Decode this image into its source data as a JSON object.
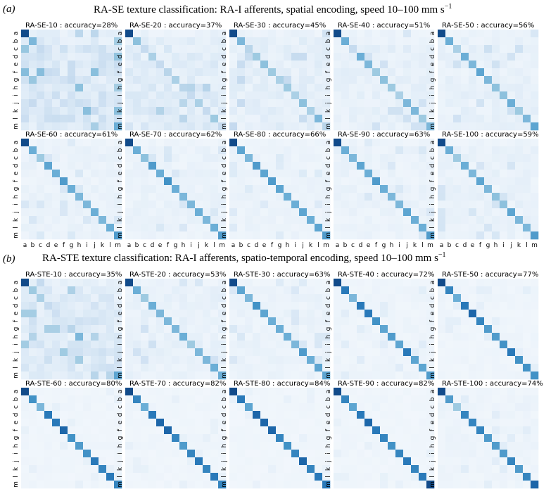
{
  "figure": {
    "panel_a_label": "(a)",
    "panel_a_title": "RA-SE texture classification: RA-I afferents, spatial encoding, speed 10–100 mm s",
    "panel_a_title_sup": "−1",
    "panel_b_label": "(b)",
    "panel_b_title": "RA-STE texture classification: RA-I afferents, spatio-temporal encoding, speed 10–100 mm s",
    "panel_b_title_sup": "−1"
  },
  "colors": {
    "low": "#f2f7fc",
    "high": "#08306b"
  },
  "chart_data": [
    {
      "type": "heatmap",
      "panel": "a",
      "title": "RA-SE-10 : accuracy=28%",
      "accuracy": 28,
      "labels": [
        "a",
        "b",
        "c",
        "d",
        "e",
        "f",
        "g",
        "h",
        "i",
        "j",
        "k",
        "l",
        "m"
      ],
      "diagonal": [
        0.95,
        0.55,
        0.3,
        0.2,
        0.2,
        0.08,
        0.3,
        0.5,
        0.15,
        0.12,
        0.15,
        0.15,
        0.6
      ],
      "off_diagonal_level": 0.09
    },
    {
      "type": "heatmap",
      "panel": "a",
      "title": "RA-SE-20 : accuracy=37%",
      "accuracy": 37,
      "labels": [
        "a",
        "b",
        "c",
        "d",
        "e",
        "f",
        "g",
        "h",
        "i",
        "j",
        "k",
        "l",
        "m"
      ],
      "diagonal": [
        0.95,
        0.5,
        0.3,
        0.4,
        0.3,
        0.35,
        0.4,
        0.35,
        0.3,
        0.4,
        0.3,
        0.45,
        0.3
      ],
      "off_diagonal_level": 0.07
    },
    {
      "type": "heatmap",
      "panel": "a",
      "title": "RA-SE-30 : accuracy=45%",
      "accuracy": 45,
      "labels": [
        "a",
        "b",
        "c",
        "d",
        "e",
        "f",
        "g",
        "h",
        "i",
        "j",
        "k",
        "l",
        "m"
      ],
      "diagonal": [
        0.95,
        0.55,
        0.35,
        0.45,
        0.5,
        0.45,
        0.4,
        0.45,
        0.4,
        0.5,
        0.4,
        0.55,
        0.35
      ],
      "off_diagonal_level": 0.06
    },
    {
      "type": "heatmap",
      "panel": "a",
      "title": "RA-SE-40 : accuracy=51%",
      "accuracy": 51,
      "labels": [
        "a",
        "b",
        "c",
        "d",
        "e",
        "f",
        "g",
        "h",
        "i",
        "j",
        "k",
        "l",
        "m"
      ],
      "diagonal": [
        0.95,
        0.6,
        0.3,
        0.6,
        0.55,
        0.45,
        0.5,
        0.45,
        0.4,
        0.55,
        0.55,
        0.45,
        0.55
      ],
      "off_diagonal_level": 0.05
    },
    {
      "type": "heatmap",
      "panel": "a",
      "title": "RA-SE-50 : accuracy=56%",
      "accuracy": 56,
      "labels": [
        "a",
        "b",
        "c",
        "d",
        "e",
        "f",
        "g",
        "h",
        "i",
        "j",
        "k",
        "l",
        "m"
      ],
      "diagonal": [
        0.95,
        0.6,
        0.4,
        0.6,
        0.55,
        0.65,
        0.55,
        0.5,
        0.5,
        0.6,
        0.45,
        0.55,
        0.65
      ],
      "off_diagonal_level": 0.05
    },
    {
      "type": "heatmap",
      "panel": "a",
      "title": "RA-SE-60 : accuracy=61%",
      "accuracy": 61,
      "labels": [
        "a",
        "b",
        "c",
        "d",
        "e",
        "f",
        "g",
        "h",
        "i",
        "j",
        "k",
        "l",
        "m"
      ],
      "diagonal": [
        0.95,
        0.6,
        0.45,
        0.65,
        0.6,
        0.7,
        0.6,
        0.55,
        0.55,
        0.6,
        0.55,
        0.6,
        0.7
      ],
      "off_diagonal_level": 0.04
    },
    {
      "type": "heatmap",
      "panel": "a",
      "title": "RA-SE-70 : accuracy=62%",
      "accuracy": 62,
      "labels": [
        "a",
        "b",
        "c",
        "d",
        "e",
        "f",
        "g",
        "h",
        "i",
        "j",
        "k",
        "l",
        "m"
      ],
      "diagonal": [
        0.95,
        0.6,
        0.5,
        0.7,
        0.6,
        0.75,
        0.6,
        0.55,
        0.55,
        0.6,
        0.55,
        0.6,
        0.7
      ],
      "off_diagonal_level": 0.04
    },
    {
      "type": "heatmap",
      "panel": "a",
      "title": "RA-SE-80 : accuracy=66%",
      "accuracy": 66,
      "labels": [
        "a",
        "b",
        "c",
        "d",
        "e",
        "f",
        "g",
        "h",
        "i",
        "j",
        "k",
        "l",
        "m"
      ],
      "diagonal": [
        0.95,
        0.65,
        0.55,
        0.7,
        0.65,
        0.7,
        0.65,
        0.6,
        0.6,
        0.65,
        0.6,
        0.65,
        0.7
      ],
      "off_diagonal_level": 0.035
    },
    {
      "type": "heatmap",
      "panel": "a",
      "title": "RA-SE-90 : accuracy=63%",
      "accuracy": 63,
      "labels": [
        "a",
        "b",
        "c",
        "d",
        "e",
        "f",
        "g",
        "h",
        "i",
        "j",
        "k",
        "l",
        "m"
      ],
      "diagonal": [
        0.95,
        0.6,
        0.55,
        0.65,
        0.6,
        0.7,
        0.6,
        0.55,
        0.55,
        0.65,
        0.6,
        0.6,
        0.7
      ],
      "off_diagonal_level": 0.04
    },
    {
      "type": "heatmap",
      "panel": "a",
      "title": "RA-SE-100 : accuracy=59%",
      "accuracy": 59,
      "labels": [
        "a",
        "b",
        "c",
        "d",
        "e",
        "f",
        "g",
        "h",
        "i",
        "j",
        "k",
        "l",
        "m"
      ],
      "diagonal": [
        0.95,
        0.6,
        0.45,
        0.6,
        0.55,
        0.65,
        0.55,
        0.5,
        0.5,
        0.65,
        0.55,
        0.55,
        0.7
      ],
      "off_diagonal_level": 0.045
    },
    {
      "type": "heatmap",
      "panel": "b",
      "title": "RA-STE-10 : accuracy=35%",
      "accuracy": 35,
      "labels": [
        "a",
        "b",
        "c",
        "d",
        "e",
        "f",
        "g",
        "h",
        "i",
        "j",
        "k",
        "l",
        "m"
      ],
      "diagonal": [
        0.95,
        0.45,
        0.4,
        0.3,
        0.25,
        0.2,
        0.35,
        0.55,
        0.2,
        0.2,
        0.2,
        0.25,
        0.65
      ],
      "off_diagonal_level": 0.08
    },
    {
      "type": "heatmap",
      "panel": "b",
      "title": "RA-STE-20 : accuracy=53%",
      "accuracy": 53,
      "labels": [
        "a",
        "b",
        "c",
        "d",
        "e",
        "f",
        "g",
        "h",
        "i",
        "j",
        "k",
        "l",
        "m"
      ],
      "diagonal": [
        0.95,
        0.6,
        0.45,
        0.6,
        0.55,
        0.55,
        0.55,
        0.6,
        0.45,
        0.55,
        0.55,
        0.6,
        0.6
      ],
      "off_diagonal_level": 0.05
    },
    {
      "type": "heatmap",
      "panel": "b",
      "title": "RA-STE-30 : accuracy=63%",
      "accuracy": 63,
      "labels": [
        "a",
        "b",
        "c",
        "d",
        "e",
        "f",
        "g",
        "h",
        "i",
        "j",
        "k",
        "l",
        "m"
      ],
      "diagonal": [
        0.95,
        0.65,
        0.55,
        0.75,
        0.65,
        0.6,
        0.6,
        0.6,
        0.55,
        0.7,
        0.6,
        0.65,
        0.65
      ],
      "off_diagonal_level": 0.04
    },
    {
      "type": "heatmap",
      "panel": "b",
      "title": "RA-STE-40 : accuracy=72%",
      "accuracy": 72,
      "labels": [
        "a",
        "b",
        "c",
        "d",
        "e",
        "f",
        "g",
        "h",
        "i",
        "j",
        "k",
        "l",
        "m"
      ],
      "diagonal": [
        0.95,
        0.85,
        0.55,
        0.85,
        0.85,
        0.75,
        0.65,
        0.7,
        0.65,
        0.85,
        0.65,
        0.65,
        0.7
      ],
      "off_diagonal_level": 0.03
    },
    {
      "type": "heatmap",
      "panel": "b",
      "title": "RA-STE-50 : accuracy=77%",
      "accuracy": 77,
      "labels": [
        "a",
        "b",
        "c",
        "d",
        "e",
        "f",
        "g",
        "h",
        "i",
        "j",
        "k",
        "l",
        "m"
      ],
      "diagonal": [
        0.95,
        0.8,
        0.6,
        0.85,
        0.9,
        0.8,
        0.7,
        0.7,
        0.75,
        0.85,
        0.75,
        0.75,
        0.75
      ],
      "off_diagonal_level": 0.025
    },
    {
      "type": "heatmap",
      "panel": "b",
      "title": "RA-STE-60 : accuracy=80%",
      "accuracy": 80,
      "labels": [
        "a",
        "b",
        "c",
        "d",
        "e",
        "f",
        "g",
        "h",
        "i",
        "j",
        "k",
        "l",
        "m"
      ],
      "diagonal": [
        0.95,
        0.75,
        0.55,
        0.85,
        0.85,
        0.9,
        0.75,
        0.7,
        0.75,
        0.85,
        0.8,
        0.85,
        0.8
      ],
      "off_diagonal_level": 0.02
    },
    {
      "type": "heatmap",
      "panel": "b",
      "title": "RA-STE-70 : accuracy=82%",
      "accuracy": 82,
      "labels": [
        "a",
        "b",
        "c",
        "d",
        "e",
        "f",
        "g",
        "h",
        "i",
        "j",
        "k",
        "l",
        "m"
      ],
      "diagonal": [
        0.95,
        0.8,
        0.6,
        0.85,
        0.9,
        0.9,
        0.8,
        0.7,
        0.8,
        0.85,
        0.8,
        0.85,
        0.8
      ],
      "off_diagonal_level": 0.02
    },
    {
      "type": "heatmap",
      "panel": "b",
      "title": "RA-STE-80 : accuracy=84%",
      "accuracy": 84,
      "labels": [
        "a",
        "b",
        "c",
        "d",
        "e",
        "f",
        "g",
        "h",
        "i",
        "j",
        "k",
        "l",
        "m"
      ],
      "diagonal": [
        0.95,
        0.85,
        0.65,
        0.9,
        0.9,
        0.9,
        0.8,
        0.75,
        0.8,
        0.9,
        0.8,
        0.85,
        0.85
      ],
      "off_diagonal_level": 0.018
    },
    {
      "type": "heatmap",
      "panel": "b",
      "title": "RA-STE-90 : accuracy=82%",
      "accuracy": 82,
      "labels": [
        "a",
        "b",
        "c",
        "d",
        "e",
        "f",
        "g",
        "h",
        "i",
        "j",
        "k",
        "l",
        "m"
      ],
      "diagonal": [
        0.95,
        0.8,
        0.65,
        0.85,
        0.9,
        0.85,
        0.8,
        0.75,
        0.8,
        0.85,
        0.8,
        0.85,
        0.95
      ],
      "off_diagonal_level": 0.02
    },
    {
      "type": "heatmap",
      "panel": "b",
      "title": "RA-STE-100 : accuracy=74%",
      "accuracy": 74,
      "labels": [
        "a",
        "b",
        "c",
        "d",
        "e",
        "f",
        "g",
        "h",
        "i",
        "j",
        "k",
        "l",
        "m"
      ],
      "diagonal": [
        0.95,
        0.7,
        0.45,
        0.8,
        0.8,
        0.8,
        0.7,
        0.7,
        0.7,
        0.8,
        0.7,
        0.8,
        0.9
      ],
      "off_diagonal_level": 0.03
    }
  ]
}
